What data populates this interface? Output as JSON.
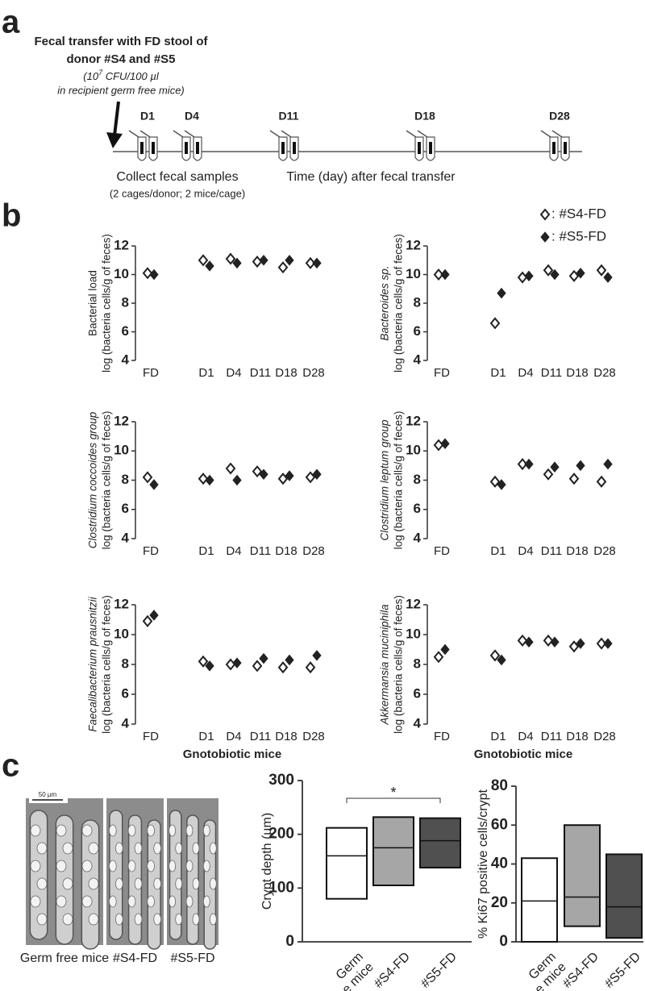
{
  "panel_labels": [
    "a",
    "b",
    "c"
  ],
  "panel_a": {
    "title_lines": [
      "Fecal transfer with FD stool of",
      "donor #S4 and #S5"
    ],
    "note_pre": "(10",
    "note_sup": "7",
    "note_post": " CFU/100 µl",
    "note_line2": "in recipient germ free mice)",
    "timepoints": [
      "D1",
      "D4",
      "D11",
      "D18",
      "D28"
    ],
    "collect": "Collect fecal samples",
    "collect_note": "(2 cages/donor; 2 mice/cage)",
    "time_label": "Time (day) after fecal transfer"
  },
  "panel_b": {
    "legend": [
      {
        "style": "open",
        "label": ": #S4-FD"
      },
      {
        "style": "filled",
        "label": ": #S5-FD"
      }
    ]
  },
  "panel_c": {
    "images": [
      "Germ free mice",
      "#S4-FD",
      "#S5-FD"
    ],
    "scale_bar": "50 µm"
  },
  "chart_data": [
    {
      "type": "strip",
      "y_label_lines": [
        "Bacterial load",
        "log (bacteria cells/g of feces)"
      ],
      "italic": false,
      "categories": [
        "FD",
        "D1",
        "D4",
        "D11",
        "D18",
        "D28"
      ],
      "ylim": [
        4,
        12
      ],
      "yticks": [
        4,
        6,
        8,
        10,
        12
      ],
      "series": [
        {
          "style": "open",
          "values": [
            10.1,
            11.0,
            11.1,
            10.9,
            10.5,
            10.8
          ]
        },
        {
          "style": "filled",
          "values": [
            10.0,
            10.6,
            10.8,
            11.0,
            11.0,
            10.8
          ]
        }
      ]
    },
    {
      "type": "strip",
      "y_label_lines": [
        "Bacteroides sp.",
        "log (bacteria cells/g of feces)"
      ],
      "italic": true,
      "categories": [
        "FD",
        "D1",
        "D4",
        "D11",
        "D18",
        "D28"
      ],
      "ylim": [
        4,
        12
      ],
      "yticks": [
        4,
        6,
        8,
        10,
        12
      ],
      "series": [
        {
          "style": "open",
          "values": [
            10.0,
            6.6,
            9.8,
            10.3,
            9.9,
            10.3
          ]
        },
        {
          "style": "filled",
          "values": [
            10.0,
            8.7,
            9.9,
            10.0,
            10.1,
            9.8
          ]
        }
      ]
    },
    {
      "type": "strip",
      "y_label_lines": [
        "Clostridium coccoides group",
        "log (bacteria cells/g of feces)"
      ],
      "italic": true,
      "categories": [
        "FD",
        "D1",
        "D4",
        "D11",
        "D18",
        "D28"
      ],
      "ylim": [
        4,
        12
      ],
      "yticks": [
        4,
        6,
        8,
        10,
        12
      ],
      "series": [
        {
          "style": "open",
          "values": [
            8.2,
            8.1,
            8.8,
            8.6,
            8.1,
            8.2
          ]
        },
        {
          "style": "filled",
          "values": [
            7.7,
            8.0,
            8.0,
            8.4,
            8.3,
            8.4
          ]
        }
      ]
    },
    {
      "type": "strip",
      "y_label_lines": [
        "Clostridium leptum group",
        "log (bacteria cells/g of feces)"
      ],
      "italic": true,
      "categories": [
        "FD",
        "D1",
        "D4",
        "D11",
        "D18",
        "D28"
      ],
      "ylim": [
        4,
        12
      ],
      "yticks": [
        4,
        6,
        8,
        10,
        12
      ],
      "series": [
        {
          "style": "open",
          "values": [
            10.4,
            7.9,
            9.1,
            8.4,
            8.1,
            7.9
          ]
        },
        {
          "style": "filled",
          "values": [
            10.5,
            7.7,
            9.1,
            8.9,
            9.0,
            9.1
          ]
        }
      ]
    },
    {
      "type": "strip",
      "y_label_lines": [
        "Faecalibacterium prausnitzii",
        "log (bacteria cells/g of feces)"
      ],
      "italic": true,
      "categories": [
        "FD",
        "D1",
        "D4",
        "D11",
        "D18",
        "D28"
      ],
      "ylim": [
        4,
        12
      ],
      "yticks": [
        4,
        6,
        8,
        10,
        12
      ],
      "x_label": "Gnotobiotic mice",
      "series": [
        {
          "style": "open",
          "values": [
            10.9,
            8.2,
            8.0,
            7.9,
            7.8,
            7.8
          ]
        },
        {
          "style": "filled",
          "values": [
            11.3,
            7.9,
            8.1,
            8.4,
            8.3,
            8.6
          ]
        }
      ]
    },
    {
      "type": "strip",
      "y_label_lines": [
        "Akkermansia muciniphila",
        "log (bacteria cells/g of feces)"
      ],
      "italic": true,
      "categories": [
        "FD",
        "D1",
        "D4",
        "D11",
        "D18",
        "D28"
      ],
      "ylim": [
        4,
        12
      ],
      "yticks": [
        4,
        6,
        8,
        10,
        12
      ],
      "x_label": "Gnotobiotic mice",
      "series": [
        {
          "style": "open",
          "values": [
            8.5,
            8.6,
            9.6,
            9.6,
            9.2,
            9.4
          ]
        },
        {
          "style": "filled",
          "values": [
            9.0,
            8.3,
            9.5,
            9.5,
            9.4,
            9.4
          ]
        }
      ]
    },
    {
      "type": "box",
      "y_label": "Crypt depth (µm)",
      "categories": [
        "Germ free mice",
        "#S4-FD",
        "#S5-FD"
      ],
      "low": [
        80,
        105,
        138
      ],
      "median": [
        160,
        175,
        188
      ],
      "high": [
        212,
        232,
        230
      ],
      "colors": [
        "#ffffff",
        "#a6a6a6",
        "#505050"
      ],
      "ylim": [
        0,
        300
      ],
      "yticks": [
        0,
        100,
        200,
        300
      ],
      "significance": {
        "from": 0,
        "to": 2,
        "label": "*"
      }
    },
    {
      "type": "box",
      "y_label": "% Ki67 positive cells/crypt",
      "categories": [
        "Germ free mice",
        "#S4-FD",
        "#S5-FD"
      ],
      "low": [
        0,
        8,
        2
      ],
      "median": [
        21,
        23,
        18
      ],
      "high": [
        43,
        60,
        45
      ],
      "colors": [
        "#ffffff",
        "#a6a6a6",
        "#505050"
      ],
      "ylim": [
        0,
        80
      ],
      "yticks": [
        0,
        20,
        40,
        60,
        80
      ]
    }
  ]
}
